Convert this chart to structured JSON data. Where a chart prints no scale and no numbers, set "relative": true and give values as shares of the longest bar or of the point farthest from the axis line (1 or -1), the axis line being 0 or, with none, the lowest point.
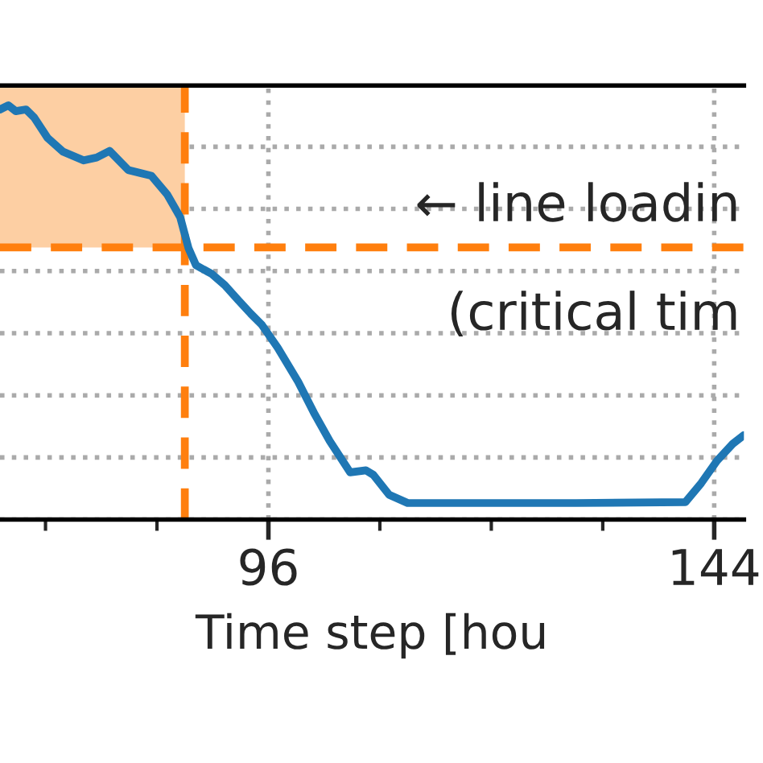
{
  "chart_data": {
    "type": "line",
    "relative": true,
    "xlabel": "Time step [hou",
    "x": [
      67.1,
      68.0,
      68.8,
      69.9,
      70.8,
      72.2,
      73.9,
      76.1,
      77.5,
      78.9,
      80.9,
      82.3,
      83.4,
      85.1,
      86.5,
      87.4,
      88.2,
      89.9,
      91.3,
      92.7,
      94.1,
      95.3,
      97.0,
      99.2,
      100.9,
      102.6,
      104.8,
      106.5,
      107.3,
      109.0,
      111.0,
      117.8,
      129.1,
      140.9,
      142.6,
      144.3,
      146.0,
      147.2
    ],
    "series": [
      {
        "color": "#1f77b4",
        "values": [
          0.99,
          1.0,
          0.986,
          0.99,
          0.97,
          0.922,
          0.888,
          0.867,
          0.874,
          0.89,
          0.844,
          0.836,
          0.83,
          0.785,
          0.73,
          0.655,
          0.614,
          0.593,
          0.566,
          0.531,
          0.497,
          0.47,
          0.415,
          0.333,
          0.258,
          0.19,
          0.114,
          0.119,
          0.108,
          0.06,
          0.04,
          0.04,
          0.04,
          0.042,
          0.088,
          0.142,
          0.183,
          0.204
        ]
      }
    ],
    "xlim": [
      67.1,
      147.2
    ],
    "xticks": [
      {
        "value": 72,
        "label": null
      },
      {
        "value": 84,
        "label": null
      },
      96,
      {
        "value": 108,
        "label": null
      },
      {
        "value": 120,
        "label": null
      },
      {
        "value": 132,
        "label": null
      },
      144
    ],
    "ref_lines": [
      {
        "axis": "x",
        "value": 87,
        "color": "#ff7f0e",
        "line_style": "dashed"
      },
      {
        "axis": "y",
        "value": 0.657,
        "color": "#ff7f0e",
        "line_style": "dashed"
      }
    ],
    "bands": [
      {
        "axis": "x",
        "from": 67.1,
        "to": 87,
        "color": "#fdcfa3"
      }
    ],
    "annotations": [
      "← line loadin",
      "(critical tim"
    ],
    "grid": true,
    "marker": "none",
    "line_style": "solid",
    "tick_labels": "x"
  }
}
